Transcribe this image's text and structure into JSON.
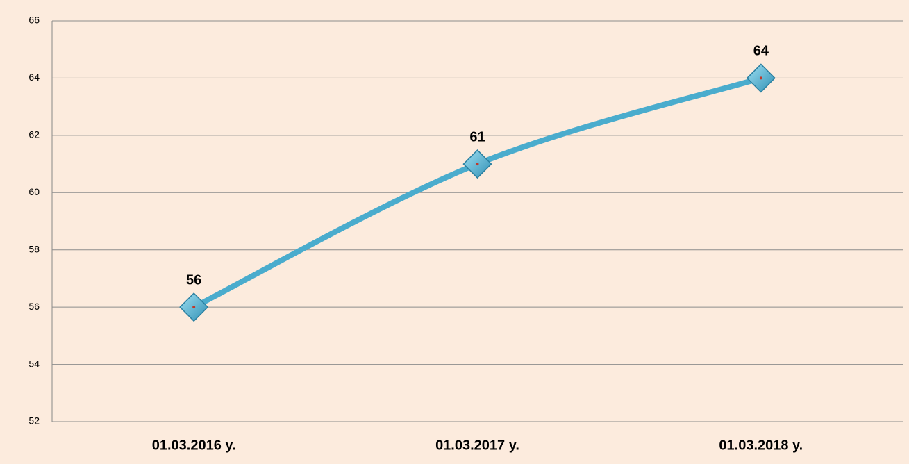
{
  "chart_data": {
    "type": "line",
    "categories": [
      "01.03.2016 y.",
      "01.03.2017 y.",
      "01.03.2018 y."
    ],
    "values": [
      56,
      61,
      64
    ],
    "color": "#4aaccd",
    "ylim": [
      52,
      66
    ],
    "yticks": [
      52,
      54,
      56,
      58,
      60,
      62,
      64,
      66
    ],
    "grid": true
  }
}
